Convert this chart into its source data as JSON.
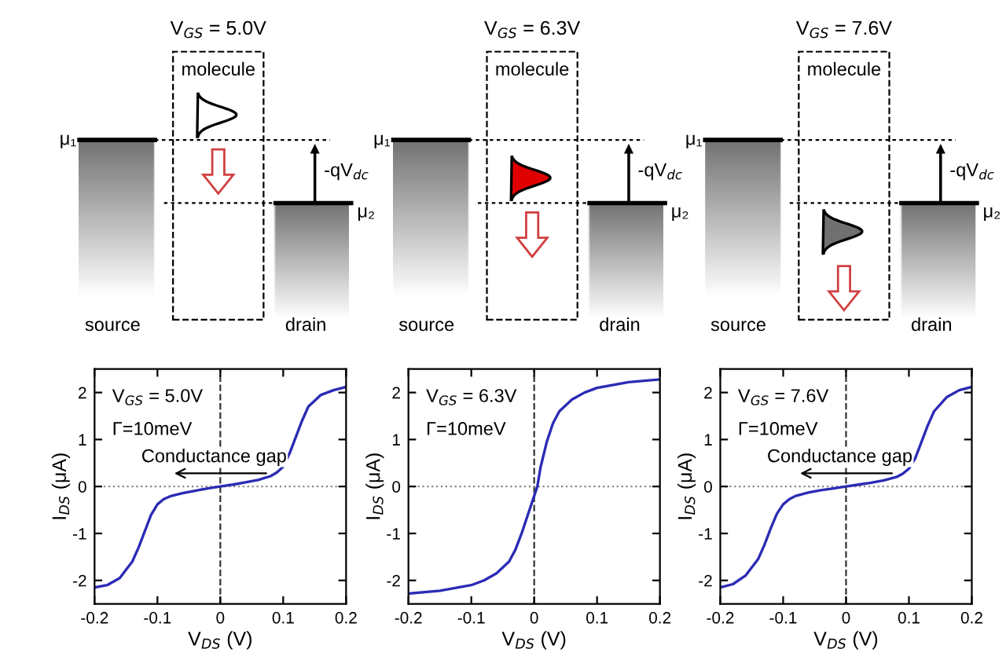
{
  "chart_data": [
    {
      "type": "line",
      "title": "V$_{GS}$ = 5.0V",
      "xlabel": "V$_{DS}$ (V)",
      "ylabel": "I$_{DS}$ (μA)",
      "annotations": [
        "molecule",
        "μ₁",
        "μ₂",
        "-qV$_{dc}$",
        "source",
        "drain",
        "V$_{GS}$ = 5.0V",
        "Γ=10meV",
        "Conductance gap"
      ],
      "series": [
        {
          "color": "#2b2bb5",
          "x": [
            -0.2,
            -0.18,
            -0.16,
            -0.14,
            -0.13,
            -0.12,
            -0.11,
            -0.1,
            -0.09,
            -0.08,
            -0.06,
            -0.04,
            -0.02,
            0,
            0.02,
            0.04,
            0.06,
            0.08,
            0.09,
            0.1,
            0.11,
            0.12,
            0.13,
            0.14,
            0.16,
            0.18,
            0.2
          ],
          "values": [
            -2.15,
            -2.1,
            -1.95,
            -1.6,
            -1.3,
            -0.95,
            -0.6,
            -0.38,
            -0.27,
            -0.21,
            -0.14,
            -0.09,
            -0.04,
            0,
            0.04,
            0.09,
            0.14,
            0.22,
            0.3,
            0.42,
            0.7,
            1.05,
            1.4,
            1.7,
            1.95,
            2.05,
            2.12
          ]
        }
      ],
      "xlim": [
        -0.2,
        0.2
      ],
      "ylim": [
        -2.5,
        2.5
      ],
      "xticks": [
        -0.2,
        -0.1,
        0,
        0.1,
        0.2
      ],
      "yticks": [
        -2,
        -1,
        0,
        1,
        2
      ],
      "ref_lines": [
        {
          "axis": "x",
          "value": 0,
          "line_style": "dashed",
          "color": "#333333"
        },
        {
          "axis": "y",
          "value": 0,
          "line_style": "dotted",
          "color": "#888888"
        }
      ],
      "grid": false,
      "legend": false,
      "marker": "none",
      "line_style": "solid"
    },
    {
      "type": "line",
      "title": "V$_{GS}$ = 6.3V",
      "xlabel": "V$_{DS}$ (V)",
      "ylabel": "I$_{DS}$ (μA)",
      "annotations": [
        "molecule",
        "μ₁",
        "μ₂",
        "-qV$_{dc}$",
        "source",
        "drain",
        "V$_{GS}$ = 6.3V",
        "Γ=10meV"
      ],
      "series": [
        {
          "color": "#2b2bb5",
          "x": [
            -0.2,
            -0.15,
            -0.1,
            -0.08,
            -0.06,
            -0.04,
            -0.03,
            -0.02,
            -0.01,
            0,
            0.005,
            0.01,
            0.02,
            0.03,
            0.04,
            0.06,
            0.08,
            0.1,
            0.15,
            0.2
          ],
          "values": [
            -2.28,
            -2.22,
            -2.1,
            -2.0,
            -1.85,
            -1.6,
            -1.35,
            -1.0,
            -0.6,
            -0.2,
            0,
            0.4,
            0.95,
            1.35,
            1.6,
            1.85,
            2.0,
            2.1,
            2.22,
            2.28
          ]
        }
      ],
      "xlim": [
        -0.2,
        0.2
      ],
      "ylim": [
        -2.5,
        2.5
      ],
      "xticks": [
        -0.2,
        -0.1,
        0,
        0.1,
        0.2
      ],
      "yticks": [
        -2,
        -1,
        0,
        1,
        2
      ],
      "ref_lines": [
        {
          "axis": "x",
          "value": 0,
          "line_style": "dashed",
          "color": "#333333"
        },
        {
          "axis": "y",
          "value": 0,
          "line_style": "dotted",
          "color": "#888888"
        }
      ],
      "grid": false,
      "legend": false,
      "marker": "none",
      "line_style": "solid"
    },
    {
      "type": "line",
      "title": "V$_{GS}$ = 7.6V",
      "xlabel": "V$_{DS}$ (V)",
      "ylabel": "I$_{DS}$ (μA)",
      "annotations": [
        "molecule",
        "μ₁",
        "μ₂",
        "-qV$_{dc}$",
        "source",
        "drain",
        "V$_{GS}$ = 7.6V",
        "Γ=10meV",
        "Conductance gap"
      ],
      "series": [
        {
          "color": "#2b2bb5",
          "x": [
            -0.2,
            -0.18,
            -0.16,
            -0.14,
            -0.13,
            -0.12,
            -0.11,
            -0.1,
            -0.09,
            -0.08,
            -0.06,
            -0.04,
            -0.02,
            0,
            0.02,
            0.04,
            0.06,
            0.08,
            0.09,
            0.1,
            0.11,
            0.12,
            0.13,
            0.14,
            0.16,
            0.18,
            0.2
          ],
          "values": [
            -2.15,
            -2.08,
            -1.9,
            -1.55,
            -1.25,
            -0.9,
            -0.58,
            -0.38,
            -0.27,
            -0.2,
            -0.13,
            -0.08,
            -0.04,
            0,
            0.04,
            0.08,
            0.13,
            0.2,
            0.27,
            0.38,
            0.6,
            0.95,
            1.3,
            1.6,
            1.9,
            2.05,
            2.12
          ]
        }
      ],
      "xlim": [
        -0.2,
        0.2
      ],
      "ylim": [
        -2.5,
        2.5
      ],
      "xticks": [
        -0.2,
        -0.1,
        0,
        0.1,
        0.2
      ],
      "yticks": [
        -2,
        -1,
        0,
        1,
        2
      ],
      "ref_lines": [
        {
          "axis": "x",
          "value": 0,
          "line_style": "dashed",
          "color": "#333333"
        },
        {
          "axis": "y",
          "value": 0,
          "line_style": "dotted",
          "color": "#888888"
        }
      ],
      "grid": false,
      "legend": false,
      "marker": "none",
      "line_style": "solid"
    }
  ]
}
